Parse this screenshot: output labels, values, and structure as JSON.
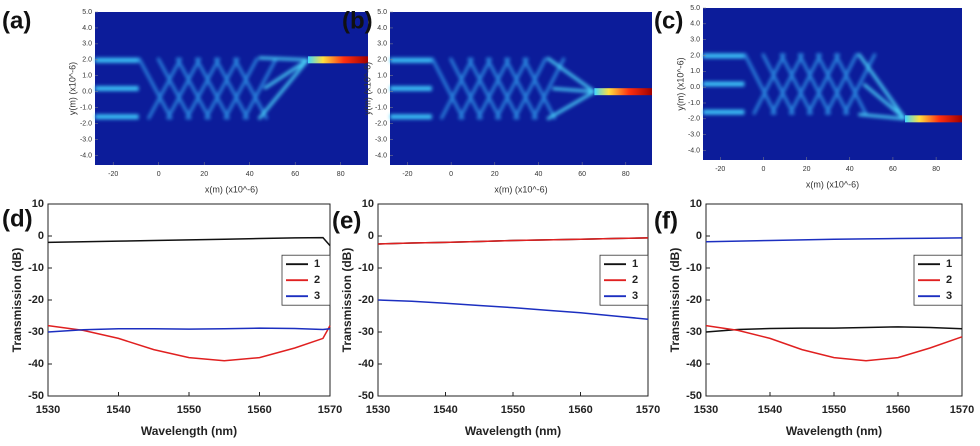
{
  "chart_data": [
    {
      "type": "heatmap",
      "label": "(a)",
      "xlabel": "x(m) (x10^-6)",
      "ylabel": "y(m) (x10^-6)",
      "output": 2,
      "xlim": [
        -28,
        92
      ],
      "xticks": [
        -20,
        0,
        20,
        40,
        60,
        80
      ],
      "ylim": [
        -4.6,
        5.0
      ],
      "yticks": [
        {
          "value": 5,
          "label": "5.0"
        },
        {
          "value": 4,
          "label": "4.0"
        },
        {
          "value": 3,
          "label": "3.0"
        },
        {
          "value": 2,
          "label": "2.0"
        },
        {
          "value": 1,
          "label": "1.0"
        },
        {
          "value": 0,
          "label": "0.0"
        },
        {
          "value": -1,
          "label": "-1.0"
        },
        {
          "value": -2,
          "label": "-2.0"
        },
        {
          "value": -3,
          "label": "-3.0"
        },
        {
          "value": -4,
          "label": "-4.0"
        }
      ]
    },
    {
      "type": "heatmap",
      "label": "(b)",
      "xlabel": "x(m) (x10^-6)",
      "ylabel": "y(m) (x10^-6)",
      "output": 0,
      "xlim": [
        -28,
        92
      ],
      "xticks": [
        -20,
        0,
        20,
        40,
        60,
        80
      ],
      "ylim": [
        -4.6,
        5.0
      ],
      "yticks": [
        {
          "value": 5,
          "label": "5.0"
        },
        {
          "value": 4,
          "label": "4.0"
        },
        {
          "value": 3,
          "label": "3.0"
        },
        {
          "value": 2,
          "label": "2.0"
        },
        {
          "value": 1,
          "label": "1.0"
        },
        {
          "value": 0,
          "label": "0.0"
        },
        {
          "value": -1,
          "label": "-1.0"
        },
        {
          "value": -2,
          "label": "-2.0"
        },
        {
          "value": -3,
          "label": "-3.0"
        },
        {
          "value": -4,
          "label": "-4.0"
        }
      ]
    },
    {
      "type": "heatmap",
      "label": "(c)",
      "xlabel": "x(m) (x10^-6)",
      "ylabel": "y(m) (x10^-6)",
      "output": -2,
      "xlim": [
        -28,
        92
      ],
      "xticks": [
        -20,
        0,
        20,
        40,
        60,
        80
      ],
      "ylim": [
        -4.6,
        5.0
      ],
      "yticks": [
        {
          "value": 5,
          "label": "5.0"
        },
        {
          "value": 4,
          "label": "4.0"
        },
        {
          "value": 3,
          "label": "3.0"
        },
        {
          "value": 2,
          "label": "2.0"
        },
        {
          "value": 1,
          "label": "1.0"
        },
        {
          "value": 0,
          "label": "0.0"
        },
        {
          "value": -1,
          "label": "-1.0"
        },
        {
          "value": -2,
          "label": "-2.0"
        },
        {
          "value": -3,
          "label": "-3.0"
        },
        {
          "value": -4,
          "label": "-4.0"
        }
      ]
    },
    {
      "type": "line",
      "label": "(d)",
      "xlabel": "Wavelength (nm)",
      "ylabel": "Transmission (dB)",
      "x": [
        1530,
        1535,
        1540,
        1545,
        1550,
        1555,
        1560,
        1565,
        1569,
        1570
      ],
      "xlim": [
        1530,
        1570
      ],
      "xticks": [
        1530,
        1540,
        1550,
        1560,
        1570
      ],
      "ylim": [
        -50,
        10
      ],
      "yticks": [
        -50,
        -40,
        -30,
        -20,
        -10,
        0,
        10
      ],
      "series": [
        {
          "name": "1",
          "color": "#111111",
          "values": [
            -2,
            -1.8,
            -1.6,
            -1.4,
            -1.2,
            -1,
            -0.8,
            -0.6,
            -0.5,
            -3
          ]
        },
        {
          "name": "2",
          "color": "#e02020",
          "values": [
            -28,
            -29.5,
            -32,
            -35.5,
            -38,
            -39,
            -38,
            -35,
            -32,
            -28
          ]
        },
        {
          "name": "3",
          "color": "#1c2fc0",
          "values": [
            -30,
            -29.3,
            -29,
            -29,
            -29.1,
            -29,
            -28.8,
            -28.9,
            -29.2,
            -29
          ]
        }
      ]
    },
    {
      "type": "line",
      "label": "(e)",
      "xlabel": "Wavelength (nm)",
      "ylabel": "Transmission (dB)",
      "x": [
        1530,
        1535,
        1540,
        1545,
        1550,
        1555,
        1560,
        1565,
        1570
      ],
      "xlim": [
        1530,
        1570
      ],
      "xticks": [
        1530,
        1540,
        1550,
        1560,
        1570
      ],
      "ylim": [
        -50,
        10
      ],
      "yticks": [
        -50,
        -40,
        -30,
        -20,
        -10,
        0,
        10
      ],
      "series": [
        {
          "name": "1",
          "color": "#111111",
          "values": [
            -2.5,
            -2.2,
            -2,
            -1.7,
            -1.4,
            -1.2,
            -1,
            -0.8,
            -0.6
          ]
        },
        {
          "name": "2",
          "color": "#e02020",
          "values": [
            -2.5,
            -2.2,
            -2,
            -1.7,
            -1.4,
            -1.2,
            -1,
            -0.8,
            -0.6
          ]
        },
        {
          "name": "3",
          "color": "#1c2fc0",
          "values": [
            -20,
            -20.4,
            -21,
            -21.7,
            -22.4,
            -23.2,
            -24,
            -25,
            -26
          ]
        }
      ]
    },
    {
      "type": "line",
      "label": "(f)",
      "xlabel": "Wavelength (nm)",
      "ylabel": "Transmission (dB)",
      "x": [
        1530,
        1535,
        1540,
        1545,
        1550,
        1555,
        1560,
        1565,
        1570
      ],
      "xlim": [
        1530,
        1570
      ],
      "xticks": [
        1530,
        1540,
        1550,
        1560,
        1570
      ],
      "ylim": [
        -50,
        10
      ],
      "yticks": [
        -50,
        -40,
        -30,
        -20,
        -10,
        0,
        10
      ],
      "series": [
        {
          "name": "1",
          "color": "#111111",
          "values": [
            -30,
            -29.2,
            -28.9,
            -28.8,
            -28.8,
            -28.6,
            -28.4,
            -28.6,
            -29
          ]
        },
        {
          "name": "2",
          "color": "#e02020",
          "values": [
            -28,
            -29.5,
            -32,
            -35.5,
            -38,
            -39,
            -38,
            -35,
            -31.5
          ]
        },
        {
          "name": "3",
          "color": "#1c2fc0",
          "values": [
            -1.8,
            -1.6,
            -1.4,
            -1.2,
            -1,
            -0.9,
            -0.8,
            -0.7,
            -0.6
          ]
        }
      ]
    }
  ]
}
